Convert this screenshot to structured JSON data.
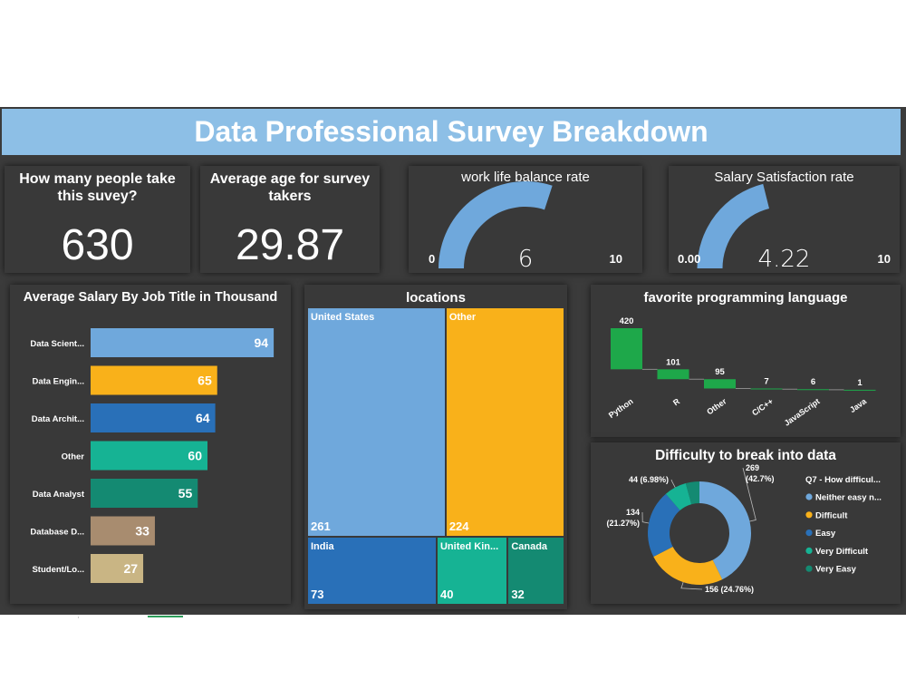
{
  "title": "Data Professional Survey Breakdown",
  "kpis": [
    {
      "question": "How many people take this suvey?",
      "value": "630"
    },
    {
      "question": "Average age for survey takers",
      "value": "29.87"
    }
  ],
  "gauges": [
    {
      "title": "work life balance rate",
      "min": "0",
      "max": "10",
      "value_label": "6",
      "value": 6,
      "min_value": 0,
      "max_value": 10,
      "color": "#6fa8dc"
    },
    {
      "title": "Salary Satisfaction rate",
      "min": "0.00",
      "max": "10",
      "value_label": "4.22",
      "value": 4.22,
      "min_value": 0,
      "max_value": 10,
      "color": "#6fa8dc"
    }
  ],
  "salary_title": "Average Salary By Job Title in Thousand",
  "locations_title": "locations",
  "language_title": "favorite programming language",
  "difficulty_title": "Difficulty to break into data",
  "chart_data": [
    {
      "type": "bar",
      "orientation": "horizontal",
      "title": "Average Salary By Job Title in Thousand",
      "categories": [
        "Data Scient...",
        "Data Engin...",
        "Data Archit...",
        "Other",
        "Data Analyst",
        "Database D...",
        "Student/Lo..."
      ],
      "values": [
        94,
        65,
        64,
        60,
        55,
        33,
        27
      ],
      "colors": [
        "#6fa8dc",
        "#f9b11a",
        "#2970b8",
        "#16b394",
        "#148a72",
        "#a88c6f",
        "#c9b584"
      ],
      "xlim": [
        0,
        100
      ]
    },
    {
      "type": "treemap",
      "title": "locations",
      "items": [
        {
          "label": "United States",
          "value": 261,
          "color": "#6fa8dc"
        },
        {
          "label": "Other",
          "value": 224,
          "color": "#f9b11a"
        },
        {
          "label": "India",
          "value": 73,
          "color": "#2970b8"
        },
        {
          "label": "United Kin...",
          "value": 40,
          "color": "#16b394"
        },
        {
          "label": "Canada",
          "value": 32,
          "color": "#148a72"
        }
      ]
    },
    {
      "type": "waterfall",
      "title": "favorite programming language",
      "categories": [
        "Python",
        "R",
        "Other",
        "C/C++",
        "JavaScript",
        "Java"
      ],
      "values": [
        420,
        101,
        95,
        7,
        6,
        1
      ],
      "value_labels": [
        "420",
        "101",
        "95",
        "7",
        "6",
        "1"
      ],
      "color": "#1ea84a"
    },
    {
      "type": "donut",
      "title": "Difficulty to break into data",
      "legend_title": "Q7 - How difficul...",
      "legend_position": "right",
      "slices": [
        {
          "legend": "Neither easy n...",
          "value": 269,
          "label": "269\n(42.7%)",
          "color": "#6fa8dc"
        },
        {
          "legend": "Difficult",
          "value": 156,
          "label": "156 (24.76%)",
          "color": "#f9b11a"
        },
        {
          "legend": "Easy",
          "value": 134,
          "label": "134\n(21.27%)",
          "color": "#2970b8"
        },
        {
          "legend": "Very Difficult",
          "value": 44,
          "label": "44 (6.98%)",
          "color": "#16b394"
        },
        {
          "legend": "Very Easy",
          "value": 27,
          "label": "",
          "color": "#148a72"
        }
      ]
    }
  ]
}
